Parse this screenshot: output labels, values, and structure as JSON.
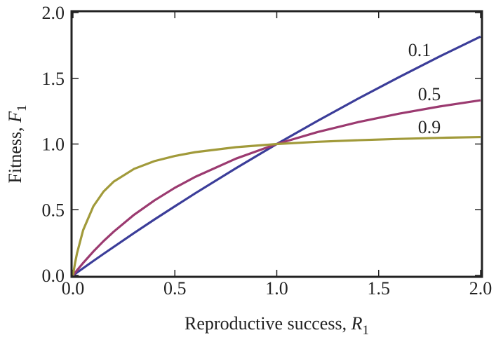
{
  "chart_data": {
    "type": "line",
    "xlabel": [
      "Reproductive success, ",
      "R",
      "1"
    ],
    "ylabel": [
      "Fitness, ",
      "F",
      "1"
    ],
    "x": [
      0,
      0.01,
      0.02,
      0.05,
      0.1,
      0.15,
      0.2,
      0.3,
      0.4,
      0.5,
      0.6,
      0.8,
      1.0,
      1.2,
      1.4,
      1.6,
      1.8,
      2.0
    ],
    "series": [
      {
        "name": "0.1",
        "color": "#3b3d99",
        "values": [
          0,
          0.011,
          0.022,
          0.055,
          0.11,
          0.164,
          0.217,
          0.323,
          0.426,
          0.526,
          0.625,
          0.816,
          1,
          1.176,
          1.346,
          1.509,
          1.667,
          1.818
        ]
      },
      {
        "name": "0.5",
        "color": "#9b3a70",
        "values": [
          0,
          0.02,
          0.039,
          0.095,
          0.182,
          0.261,
          0.333,
          0.462,
          0.571,
          0.667,
          0.75,
          0.889,
          1,
          1.091,
          1.167,
          1.231,
          1.286,
          1.333
        ]
      },
      {
        "name": "0.9",
        "color": "#a19a3a",
        "values": [
          0,
          0.092,
          0.169,
          0.345,
          0.526,
          0.638,
          0.714,
          0.811,
          0.87,
          0.909,
          0.938,
          0.976,
          1,
          1.017,
          1.029,
          1.039,
          1.047,
          1.053
        ]
      }
    ],
    "xlim": [
      0,
      2
    ],
    "ylim": [
      0,
      2
    ],
    "xticks": [
      {
        "value": 0,
        "label": "0.0"
      },
      0.5,
      {
        "value": 1,
        "label": "1.0"
      },
      1.5,
      {
        "value": 2,
        "label": "2.0"
      }
    ],
    "yticks": [
      {
        "value": 0,
        "label": "0.0"
      },
      0.5,
      {
        "value": 1,
        "label": "1.0"
      },
      1.5,
      {
        "value": 2,
        "label": "2.0"
      }
    ]
  }
}
